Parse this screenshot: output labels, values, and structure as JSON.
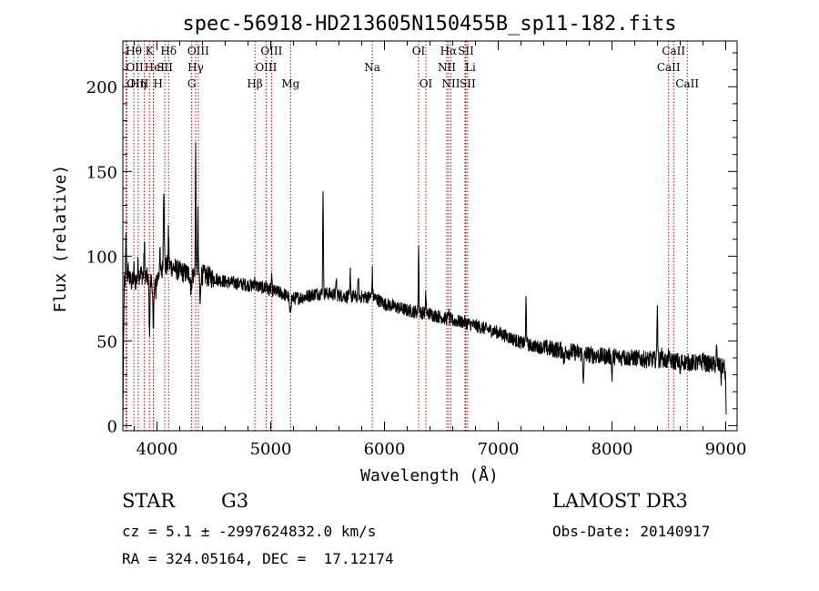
{
  "chart_data": {
    "type": "line",
    "title": "spec-56918-HD213605N150455B_sp11-182.fits",
    "xlabel": "Wavelength (Å)",
    "ylabel": "Flux (relative)",
    "xlim": [
      3700,
      9100
    ],
    "ylim": [
      -3,
      227
    ],
    "xticks": [
      4000,
      5000,
      6000,
      7000,
      8000,
      9000
    ],
    "yticks": [
      0,
      50,
      100,
      150,
      200
    ],
    "grid": false,
    "line_color": "#000000",
    "marker_color": "#c00000",
    "continuum": [
      [
        3700,
        2
      ],
      [
        3705,
        40
      ],
      [
        3712,
        82
      ],
      [
        3730,
        90
      ],
      [
        3760,
        86
      ],
      [
        3800,
        84
      ],
      [
        3850,
        90
      ],
      [
        3900,
        88
      ],
      [
        3950,
        85
      ],
      [
        4000,
        87
      ],
      [
        4050,
        92
      ],
      [
        4100,
        95
      ],
      [
        4150,
        93
      ],
      [
        4200,
        91
      ],
      [
        4300,
        89
      ],
      [
        4400,
        89
      ],
      [
        4500,
        87
      ],
      [
        4600,
        85
      ],
      [
        4700,
        84
      ],
      [
        4800,
        83
      ],
      [
        4900,
        82
      ],
      [
        5000,
        80
      ],
      [
        5100,
        78
      ],
      [
        5200,
        75
      ],
      [
        5300,
        76
      ],
      [
        5400,
        78
      ],
      [
        5500,
        78
      ],
      [
        5600,
        77
      ],
      [
        5700,
        76
      ],
      [
        5800,
        76
      ],
      [
        5900,
        76
      ],
      [
        6000,
        72
      ],
      [
        6100,
        70
      ],
      [
        6200,
        68
      ],
      [
        6300,
        67
      ],
      [
        6400,
        66
      ],
      [
        6500,
        64
      ],
      [
        6600,
        62
      ],
      [
        6700,
        61
      ],
      [
        6800,
        59
      ],
      [
        6900,
        57
      ],
      [
        7000,
        55
      ],
      [
        7100,
        52
      ],
      [
        7200,
        49
      ],
      [
        7300,
        47
      ],
      [
        7400,
        46
      ],
      [
        7500,
        45
      ],
      [
        7600,
        44
      ],
      [
        7700,
        43
      ],
      [
        7800,
        42
      ],
      [
        7900,
        41
      ],
      [
        8000,
        41
      ],
      [
        8100,
        40
      ],
      [
        8200,
        40
      ],
      [
        8300,
        39
      ],
      [
        8400,
        39
      ],
      [
        8500,
        38
      ],
      [
        8600,
        38
      ],
      [
        8700,
        37
      ],
      [
        8800,
        37
      ],
      [
        8900,
        36
      ],
      [
        8990,
        35
      ],
      [
        9000,
        25
      ],
      [
        9005,
        3
      ]
    ],
    "features": [
      [
        3728,
        22,
        3
      ],
      [
        3750,
        5,
        -3
      ],
      [
        3797,
        8,
        3
      ],
      [
        3835,
        10,
        3
      ],
      [
        3889,
        20,
        3
      ],
      [
        3934,
        -30,
        4
      ],
      [
        3968,
        -35,
        4
      ],
      [
        3990,
        -12,
        3
      ],
      [
        4025,
        15,
        3
      ],
      [
        4060,
        50,
        4
      ],
      [
        4102,
        20,
        3
      ],
      [
        4300,
        -10,
        4
      ],
      [
        4340,
        75,
        3
      ],
      [
        4360,
        35,
        3
      ],
      [
        4380,
        -20,
        3
      ],
      [
        4861,
        6,
        3
      ],
      [
        4959,
        5,
        3
      ],
      [
        5007,
        8,
        3
      ],
      [
        5170,
        -10,
        6
      ],
      [
        5460,
        62,
        3
      ],
      [
        5577,
        10,
        3
      ],
      [
        5700,
        15,
        3
      ],
      [
        5770,
        12,
        3
      ],
      [
        5893,
        15,
        3
      ],
      [
        6300,
        40,
        3
      ],
      [
        6364,
        12,
        3
      ],
      [
        6563,
        6,
        3
      ],
      [
        7245,
        28,
        3
      ],
      [
        7580,
        -5,
        6
      ],
      [
        7750,
        -18,
        4
      ],
      [
        8000,
        -12,
        4
      ],
      [
        8100,
        5,
        4
      ],
      [
        8399,
        35,
        3
      ],
      [
        8440,
        8,
        3
      ],
      [
        8500,
        5,
        3
      ],
      [
        8600,
        -8,
        4
      ],
      [
        8800,
        5,
        4
      ],
      [
        8920,
        10,
        3
      ],
      [
        8960,
        -8,
        3
      ]
    ],
    "noise_amplitude": 4,
    "lines": [
      {
        "label": "Hθ",
        "x": 3797,
        "row": 0,
        "align": "middle"
      },
      {
        "label": "OII",
        "x": 3727,
        "row": 1,
        "align": "start"
      },
      {
        "label": "OIII",
        "x": 3734,
        "row": 2,
        "align": "start"
      },
      {
        "label": "Hη",
        "x": 3835,
        "row": 2,
        "align": "middle"
      },
      {
        "label": "K",
        "x": 3934,
        "row": 0,
        "align": "middle"
      },
      {
        "label": "HeI",
        "x": 3889,
        "row": 1,
        "align": "start"
      },
      {
        "label": "H",
        "x": 3968,
        "row": 2,
        "align": "start"
      },
      {
        "label": "SII",
        "x": 4069,
        "row": 1,
        "align": "middle"
      },
      {
        "label": "Hδ",
        "x": 4102,
        "row": 0,
        "align": "middle"
      },
      {
        "label": "G",
        "x": 4305,
        "row": 2,
        "align": "middle"
      },
      {
        "label": "Hγ",
        "x": 4340,
        "row": 1,
        "align": "middle"
      },
      {
        "label": "OIII",
        "x": 4363,
        "row": 0,
        "align": "middle"
      },
      {
        "label": "Hβ",
        "x": 4861,
        "row": 2,
        "align": "middle"
      },
      {
        "label": "OIII",
        "x": 4959,
        "row": 1,
        "align": "middle"
      },
      {
        "label": "OIII",
        "x": 5007,
        "row": 0,
        "align": "middle"
      },
      {
        "label": "Mg",
        "x": 5175,
        "row": 2,
        "align": "middle"
      },
      {
        "label": "Na",
        "x": 5893,
        "row": 1,
        "align": "middle"
      },
      {
        "label": "OI",
        "x": 6300,
        "row": 0,
        "align": "middle"
      },
      {
        "label": "OI",
        "x": 6364,
        "row": 2,
        "align": "middle"
      },
      {
        "label": "Hα",
        "x": 6563,
        "row": 0,
        "align": "middle"
      },
      {
        "label": "NII",
        "x": 6548,
        "row": 1,
        "align": "middle"
      },
      {
        "label": "NII",
        "x": 6584,
        "row": 2,
        "align": "middle"
      },
      {
        "label": "SII",
        "x": 6716,
        "row": 0,
        "align": "middle"
      },
      {
        "label": "Li",
        "x": 6708,
        "row": 1,
        "align": "start"
      },
      {
        "label": "SII",
        "x": 6731,
        "row": 2,
        "align": "middle"
      },
      {
        "label": "CaII",
        "x": 8498,
        "row": 1,
        "align": "middle"
      },
      {
        "label": "CaII",
        "x": 8542,
        "row": 0,
        "align": "middle"
      },
      {
        "label": "CaII",
        "x": 8662,
        "row": 2,
        "align": "middle"
      }
    ]
  },
  "info": {
    "object_class": "STAR",
    "subclass": "G3",
    "survey": "LAMOST DR3",
    "redshift": "cz = 5.1 ± -2997624832.0 km/s",
    "obs_date": "Obs-Date: 20140917",
    "coords": "RA = 324.05164, DEC =  17.12174"
  }
}
